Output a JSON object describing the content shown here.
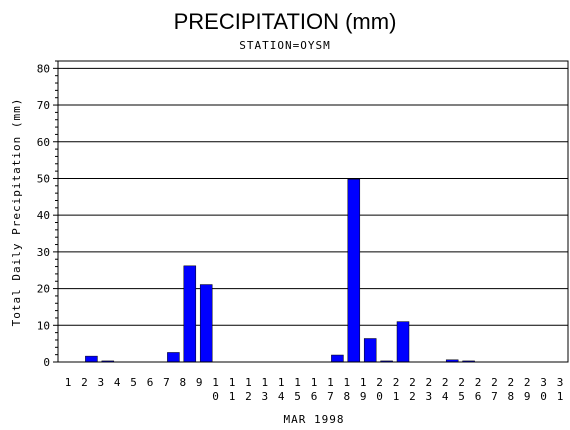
{
  "chart_data": {
    "type": "bar",
    "title": "PRECIPITATION (mm)",
    "subtitle": "STATION=OYSM",
    "xlabel": "MAR 1998",
    "ylabel": "Total Daily Precipitation (mm)",
    "ylim": [
      0,
      82
    ],
    "yticks": [
      0,
      10,
      20,
      30,
      40,
      50,
      60,
      70,
      80
    ],
    "grid": true,
    "colors": {
      "bar": "#0000ff",
      "axis": "#000000",
      "grid": "#000000"
    },
    "categories": [
      "1",
      "2",
      "3",
      "4",
      "5",
      "6",
      "7",
      "8",
      "9",
      "10",
      "11",
      "12",
      "13",
      "14",
      "15",
      "16",
      "17",
      "18",
      "19",
      "20",
      "21",
      "22",
      "23",
      "24",
      "25",
      "26",
      "27",
      "28",
      "29",
      "30",
      "31"
    ],
    "values": [
      0,
      1.6,
      0.3,
      0,
      0,
      0,
      2.6,
      26.2,
      21.1,
      0,
      0,
      0,
      0,
      0,
      0,
      0,
      1.9,
      49.8,
      6.4,
      0.3,
      11.0,
      0,
      0,
      0.6,
      0.3,
      0,
      0,
      0,
      0,
      0,
      0
    ]
  }
}
